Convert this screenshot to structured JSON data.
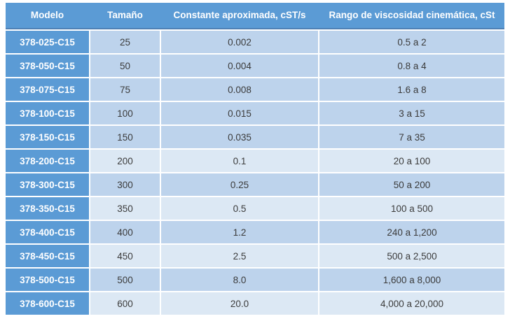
{
  "table": {
    "columns": [
      {
        "label": "Modelo"
      },
      {
        "label": "Tamaño"
      },
      {
        "label": "Constante aproximada, cST/s"
      },
      {
        "label": "Rango de viscosidad cinemática, cSt"
      }
    ],
    "rows": [
      {
        "modelo": "378-025-C15",
        "tamano": "25",
        "constante": "0.002",
        "rango": "0.5 a 2",
        "shade": "medium"
      },
      {
        "modelo": "378-050-C15",
        "tamano": "50",
        "constante": "0.004",
        "rango": "0.8 a 4",
        "shade": "medium"
      },
      {
        "modelo": "378-075-C15",
        "tamano": "75",
        "constante": "0.008",
        "rango": "1.6 a 8",
        "shade": "medium"
      },
      {
        "modelo": "378-100-C15",
        "tamano": "100",
        "constante": "0.015",
        "rango": "3 a 15",
        "shade": "medium"
      },
      {
        "modelo": "378-150-C15",
        "tamano": "150",
        "constante": "0.035",
        "rango": "7 a 35",
        "shade": "medium"
      },
      {
        "modelo": "378-200-C15",
        "tamano": "200",
        "constante": "0.1",
        "rango": "20 a 100",
        "shade": "light"
      },
      {
        "modelo": "378-300-C15",
        "tamano": "300",
        "constante": "0.25",
        "rango": "50 a 200",
        "shade": "medium"
      },
      {
        "modelo": "378-350-C15",
        "tamano": "350",
        "constante": "0.5",
        "rango": "100 a 500",
        "shade": "light"
      },
      {
        "modelo": "378-400-C15",
        "tamano": "400",
        "constante": "1.2",
        "rango": "240 a 1,200",
        "shade": "medium"
      },
      {
        "modelo": "378-450-C15",
        "tamano": "450",
        "constante": "2.5",
        "rango": "500 a 2,500",
        "shade": "light"
      },
      {
        "modelo": "378-500-C15",
        "tamano": "500",
        "constante": "8.0",
        "rango": "1,600 a 8,000",
        "shade": "medium"
      },
      {
        "modelo": "378-600-C15",
        "tamano": "600",
        "constante": "20.0",
        "rango": "4,000 a 20,000",
        "shade": "light"
      }
    ],
    "colors": {
      "header_bg": "#5B9BD5",
      "header_border": "#4E80B4",
      "model_col_bg": "#5B9BD5",
      "row_medium": "#BDD3EC",
      "row_light": "#DCE8F4",
      "header_text": "#FFFFFF",
      "cell_text": "#3B3B3B",
      "page_bg": "#FFFFFF"
    }
  },
  "chart_data": {
    "type": "table",
    "title": "",
    "columns": [
      "Modelo",
      "Tamaño",
      "Constante aproximada, cST/s",
      "Rango de viscosidad cinemática, cSt"
    ],
    "rows": [
      [
        "378-025-C15",
        "25",
        "0.002",
        "0.5 a 2"
      ],
      [
        "378-050-C15",
        "50",
        "0.004",
        "0.8 a 4"
      ],
      [
        "378-075-C15",
        "75",
        "0.008",
        "1.6 a 8"
      ],
      [
        "378-100-C15",
        "100",
        "0.015",
        "3 a 15"
      ],
      [
        "378-150-C15",
        "150",
        "0.035",
        "7 a 35"
      ],
      [
        "378-200-C15",
        "200",
        "0.1",
        "20 a 100"
      ],
      [
        "378-300-C15",
        "300",
        "0.25",
        "50 a 200"
      ],
      [
        "378-350-C15",
        "350",
        "0.5",
        "100 a 500"
      ],
      [
        "378-400-C15",
        "400",
        "1.2",
        "240 a 1,200"
      ],
      [
        "378-450-C15",
        "450",
        "2.5",
        "500 a 2,500"
      ],
      [
        "378-500-C15",
        "500",
        "8.0",
        "1,600 a 8,000"
      ],
      [
        "378-600-C15",
        "600",
        "20.0",
        "4,000 a 20,000"
      ]
    ]
  }
}
